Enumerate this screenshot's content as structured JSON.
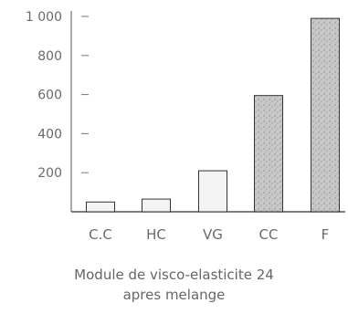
{
  "chart_data": {
    "type": "bar",
    "categories": [
      "C.C",
      "HC",
      "VG",
      "CC",
      "F"
    ],
    "values": [
      50,
      65,
      210,
      595,
      990
    ],
    "y_ticks": [
      "200",
      "400",
      "600",
      "800",
      "1 000"
    ],
    "y_tick_values": [
      200,
      400,
      600,
      800,
      1000
    ],
    "ylim": [
      0,
      1000
    ],
    "xlabel_lines": [
      "Module de visco-elasticite 24",
      "apres melange"
    ],
    "title": "",
    "ylabel": "",
    "grid": false,
    "legend": "none",
    "bar_fills": [
      "light",
      "light",
      "light",
      "dark",
      "dark"
    ],
    "colors": {
      "axis": "#555555",
      "bar_edge": "#333333",
      "light_fill": "#f4f4f4",
      "dark_fill": "#bdbdbd",
      "text": "#6a6a6a"
    }
  }
}
